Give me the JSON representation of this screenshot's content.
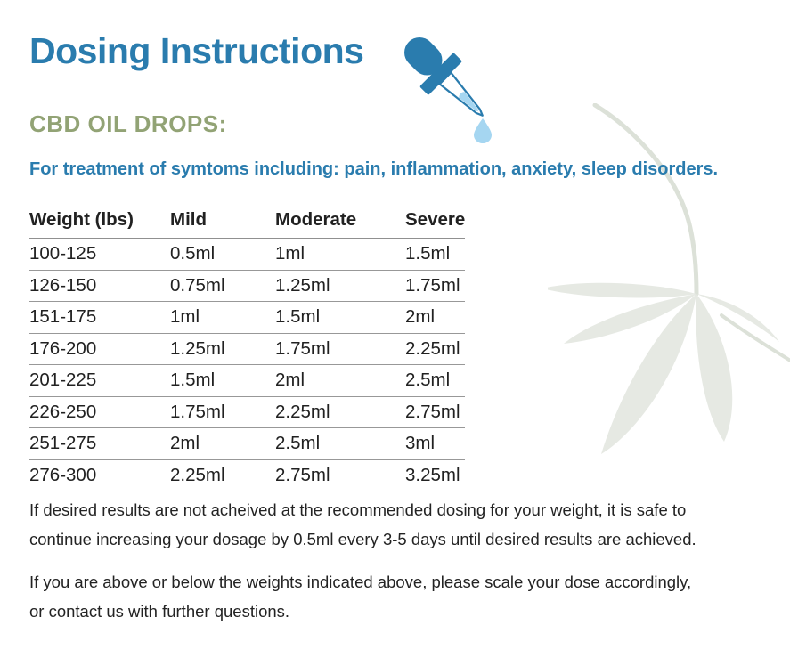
{
  "header": {
    "title": "Dosing Instructions",
    "section_heading": "CBD OIL DROPS:",
    "treatment_line": "For treatment of symtoms including: pain, inflammation, anxiety, sleep disorders."
  },
  "icons": {
    "dropper": "dropper-icon",
    "leaf": "hemp-leaf-watermark"
  },
  "colors": {
    "accent_blue": "#2a7cae",
    "accent_green": "#92a375",
    "light_blue_drop": "#a5d6f1",
    "table_text": "#212121",
    "rule_gray": "#909090",
    "leaf_gray_green": "#e6e9e3"
  },
  "dosing_table": {
    "columns": [
      "Weight (lbs)",
      "Mild",
      "Moderate",
      "Severe"
    ],
    "rows": [
      [
        "100-125",
        "0.5ml",
        "1ml",
        "1.5ml"
      ],
      [
        "126-150",
        "0.75ml",
        "1.25ml",
        "1.75ml"
      ],
      [
        "151-175",
        "1ml",
        "1.5ml",
        "2ml"
      ],
      [
        "176-200",
        "1.25ml",
        "1.75ml",
        "2.25ml"
      ],
      [
        "201-225",
        "1.5ml",
        "2ml",
        "2.5ml"
      ],
      [
        "226-250",
        "1.75ml",
        "2.25ml",
        "2.75ml"
      ],
      [
        "251-275",
        "2ml",
        "2.5ml",
        "3ml"
      ],
      [
        "276-300",
        "2.25ml",
        "2.75ml",
        "3.25ml"
      ]
    ]
  },
  "notes": [
    "If desired results are not acheived at the recommended dosing for your weight, it is safe to\ncontinue increasing your dosage by 0.5ml every 3-5 days until desired results are achieved.",
    "If you are above or below the weights indicated above, please scale your dose accordingly,\nor contact us with further questions."
  ]
}
